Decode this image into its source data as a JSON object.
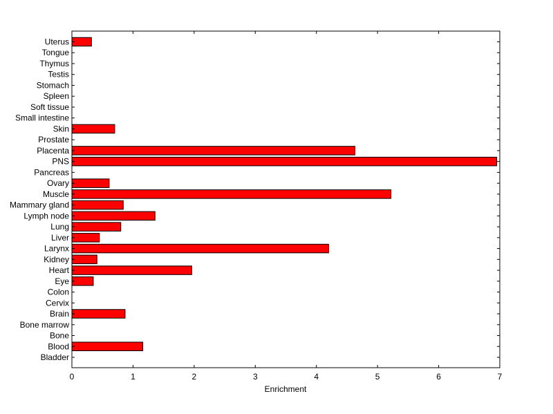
{
  "chart_data": {
    "type": "bar",
    "orientation": "horizontal",
    "title": "",
    "xlabel": "Enrichment",
    "ylabel": "",
    "xlim": [
      0,
      7
    ],
    "xticks": [
      0,
      1,
      2,
      3,
      4,
      5,
      6,
      7
    ],
    "grid": false,
    "legend": "none",
    "bar_color": "#ff0000",
    "edge_color": "#000000",
    "categories": [
      "Bladder",
      "Blood",
      "Bone",
      "Bone marrow",
      "Brain",
      "Cervix",
      "Colon",
      "Eye",
      "Heart",
      "Kidney",
      "Larynx",
      "Liver",
      "Lung",
      "Lymph node",
      "Mammary gland",
      "Muscle",
      "Ovary",
      "Pancreas",
      "PNS",
      "Placenta",
      "Prostate",
      "Skin",
      "Small intestine",
      "Soft tissue",
      "Spleen",
      "Stomach",
      "Testis",
      "Thymus",
      "Tongue",
      "Uterus"
    ],
    "values": [
      0,
      1.16,
      0,
      0,
      0.87,
      0,
      0,
      0.35,
      1.96,
      0.41,
      4.2,
      0.45,
      0.8,
      1.36,
      0.84,
      5.22,
      0.61,
      0,
      6.95,
      4.63,
      0,
      0.7,
      0,
      0,
      0,
      0,
      0,
      0,
      0,
      0.32
    ]
  }
}
